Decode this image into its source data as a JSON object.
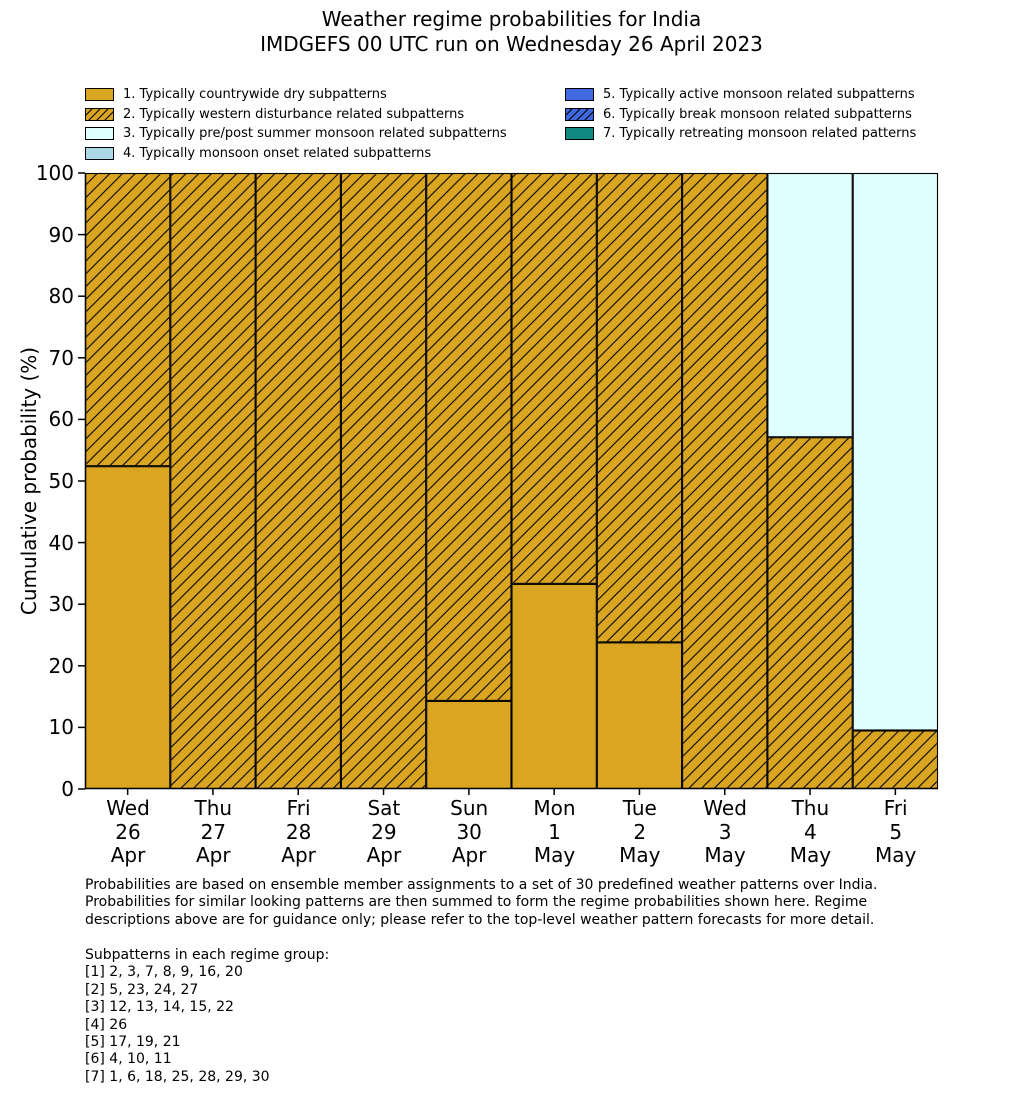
{
  "title": {
    "line1": "Weather regime probabilities for India",
    "line2": "IMDGEFS 00 UTC run on Wednesday 26 April 2023"
  },
  "legend": {
    "items": [
      {
        "label": "1. Typically countrywide dry subpatterns",
        "regime": "1",
        "column": "left"
      },
      {
        "label": "2. Typically western disturbance related subpatterns",
        "regime": "2",
        "column": "left"
      },
      {
        "label": "3. Typically pre/post summer monsoon related subpatterns",
        "regime": "3",
        "column": "left"
      },
      {
        "label": "4. Typically monsoon onset related subpatterns",
        "regime": "4",
        "column": "left"
      },
      {
        "label": "5. Typically active monsoon related subpatterns",
        "regime": "5",
        "column": "right"
      },
      {
        "label": "6. Typically break monsoon related subpatterns",
        "regime": "6",
        "column": "right"
      },
      {
        "label": "7. Typically retreating monsoon related patterns",
        "regime": "7",
        "column": "right"
      }
    ]
  },
  "regime_styles": {
    "1": {
      "fill": "#DAA520",
      "hatch": false
    },
    "2": {
      "fill": "#DAA520",
      "hatch": true
    },
    "3": {
      "fill": "#E0FFFF",
      "hatch": false
    },
    "4": {
      "fill": "#ADD8E6",
      "hatch": false
    },
    "5": {
      "fill": "#4169E1",
      "hatch": false
    },
    "6": {
      "fill": "#4169E1",
      "hatch": true
    },
    "7": {
      "fill": "#108980",
      "hatch": false
    }
  },
  "chart_data": {
    "type": "bar",
    "stacked": true,
    "title": "Weather regime probabilities for India — IMDGEFS 00 UTC run on Wednesday 26 April 2023",
    "xlabel": "",
    "ylabel": "Cumulative probability (%)",
    "ylim": [
      0,
      100
    ],
    "yticks": [
      0,
      10,
      20,
      30,
      40,
      50,
      60,
      70,
      80,
      90,
      100
    ],
    "grid": false,
    "legend_position": "top",
    "hatch_style": "/",
    "edge_color": "#000000",
    "categories": [
      [
        "Wed",
        "26",
        "Apr"
      ],
      [
        "Thu",
        "27",
        "Apr"
      ],
      [
        "Fri",
        "28",
        "Apr"
      ],
      [
        "Sat",
        "29",
        "Apr"
      ],
      [
        "Sun",
        "30",
        "Apr"
      ],
      [
        "Mon",
        "1",
        "May"
      ],
      [
        "Tue",
        "2",
        "May"
      ],
      [
        "Wed",
        "3",
        "May"
      ],
      [
        "Thu",
        "4",
        "May"
      ],
      [
        "Fri",
        "5",
        "May"
      ]
    ],
    "series": [
      {
        "name": "1. Typically countrywide dry subpatterns",
        "regime": "1",
        "values": [
          52.4,
          0,
          0,
          0,
          14.3,
          33.3,
          23.8,
          0,
          0,
          0
        ]
      },
      {
        "name": "2. Typically western disturbance related subpatterns",
        "regime": "2",
        "values": [
          47.6,
          100,
          100,
          100,
          85.7,
          66.7,
          76.2,
          100,
          57.1,
          9.5
        ]
      },
      {
        "name": "3. Typically pre/post summer monsoon related subpatterns",
        "regime": "3",
        "values": [
          0,
          0,
          0,
          0,
          0,
          0,
          0,
          0,
          42.9,
          90.5
        ]
      },
      {
        "name": "4. Typically monsoon onset related subpatterns",
        "regime": "4",
        "values": [
          0,
          0,
          0,
          0,
          0,
          0,
          0,
          0,
          0,
          0
        ]
      },
      {
        "name": "5. Typically active monsoon related subpatterns",
        "regime": "5",
        "values": [
          0,
          0,
          0,
          0,
          0,
          0,
          0,
          0,
          0,
          0
        ]
      },
      {
        "name": "6. Typically break monsoon related subpatterns",
        "regime": "6",
        "values": [
          0,
          0,
          0,
          0,
          0,
          0,
          0,
          0,
          0,
          0
        ]
      },
      {
        "name": "7. Typically retreating monsoon related patterns",
        "regime": "7",
        "values": [
          0,
          0,
          0,
          0,
          0,
          0,
          0,
          0,
          0,
          0
        ]
      }
    ]
  },
  "footnote": {
    "lines": [
      "Probabilities are based on ensemble member assignments to a set of 30 predefined weather patterns over India.",
      "Probabilities for similar looking patterns are then summed to form the regime probabilities shown here. Regime",
      "descriptions above are for guidance only; please refer to the top-level weather pattern forecasts for more detail."
    ]
  },
  "subpatterns": {
    "heading": "Subpatterns in each regime group:",
    "groups": [
      "[1] 2, 3, 7, 8, 9, 16, 20",
      "[2] 5, 23, 24, 27",
      "[3] 12, 13, 14, 15, 22",
      "[4] 26",
      "[5] 17, 19, 21",
      "[6] 4, 10, 11",
      "[7] 1, 6, 18, 25, 28, 29, 30"
    ]
  }
}
